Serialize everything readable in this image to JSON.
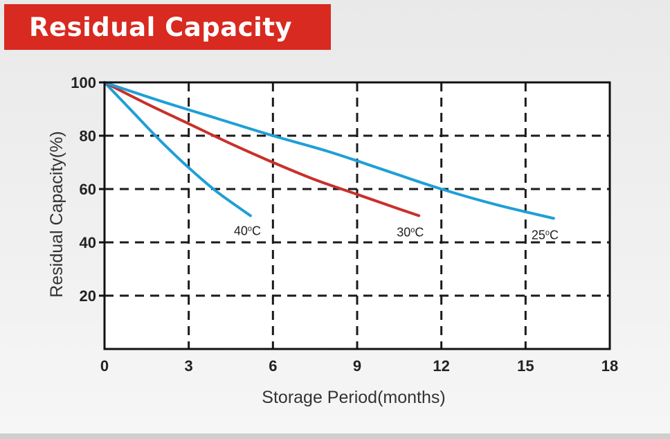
{
  "title": "Residual Capacity",
  "chart_data": {
    "type": "line",
    "title": "Residual Capacity",
    "xlabel": "Storage Period(months)",
    "ylabel": "Residual Capacity(%)",
    "xlim": [
      0,
      18
    ],
    "ylim": [
      0,
      100
    ],
    "xticks": [
      0,
      3,
      6,
      9,
      12,
      15,
      18
    ],
    "yticks": [
      20,
      40,
      60,
      80,
      100
    ],
    "grid": true,
    "colors": {
      "blue": "#1f9fd6",
      "red": "#c9302a",
      "grid": "#1a1a1a"
    },
    "series": [
      {
        "name": "40°C",
        "color": "#1f9fd6",
        "x": [
          0,
          1,
          2,
          3,
          4,
          5.2
        ],
        "y": [
          100,
          89,
          78,
          68,
          59,
          50
        ]
      },
      {
        "name": "30°C",
        "color": "#c9302a",
        "x": [
          0,
          1.5,
          3,
          4.5,
          6,
          7.5,
          9,
          10.5,
          11.2
        ],
        "y": [
          100,
          92,
          84.5,
          77,
          70,
          63.5,
          58,
          52.5,
          50
        ]
      },
      {
        "name": "25°C",
        "color": "#1f9fd6",
        "x": [
          0,
          2,
          4,
          6,
          8,
          10,
          12,
          14,
          16
        ],
        "y": [
          100,
          93,
          86.5,
          80,
          74,
          67,
          60,
          54,
          49
        ]
      }
    ],
    "labels": [
      {
        "text": "40",
        "sup": "o",
        "unit": "C",
        "series": 0
      },
      {
        "text": "30",
        "sup": "o",
        "unit": "C",
        "series": 1
      },
      {
        "text": "25",
        "sup": "o",
        "unit": "C",
        "series": 2
      }
    ]
  }
}
